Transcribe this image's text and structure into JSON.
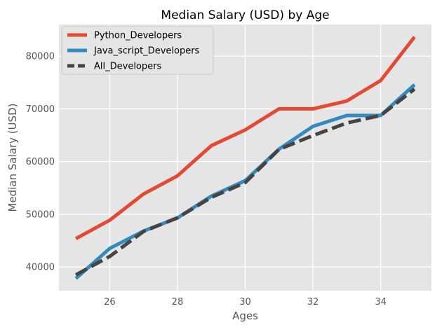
{
  "chart_data": {
    "type": "line",
    "title": "Median Salary (USD) by Age",
    "xlabel": "Ages",
    "ylabel": "Median Salary (USD)",
    "xlim": [
      24.5,
      35.5
    ],
    "ylim": [
      35500,
      86000
    ],
    "xticks": [
      26,
      28,
      30,
      32,
      34
    ],
    "yticks": [
      40000,
      50000,
      60000,
      70000,
      80000
    ],
    "grid": true,
    "legend_position": "upper-left",
    "colors": {
      "plot_background": "#e5e5e5",
      "grid": "#ffffff",
      "text": "#555555",
      "title": "#000000"
    },
    "x": [
      25,
      26,
      27,
      28,
      29,
      30,
      31,
      32,
      33,
      34,
      35
    ],
    "series": [
      {
        "name": "Python_Developers",
        "color": "#e24a33",
        "linestyle": "solid",
        "values": [
          45372,
          48876,
          53850,
          57287,
          63016,
          65998,
          70003,
          70000,
          71496,
          75370,
          83640
        ]
      },
      {
        "name": "Java_script_Developers",
        "color": "#348abd",
        "linestyle": "solid",
        "values": [
          37810,
          43515,
          46823,
          49293,
          53437,
          56373,
          62375,
          66674,
          68745,
          68746,
          74583
        ]
      },
      {
        "name": "All_Developers",
        "color": "#444444",
        "linestyle": "dashed",
        "values": [
          38496,
          42000,
          46752,
          49320,
          53200,
          56000,
          62316,
          64928,
          67317,
          68748,
          73752
        ]
      }
    ]
  }
}
